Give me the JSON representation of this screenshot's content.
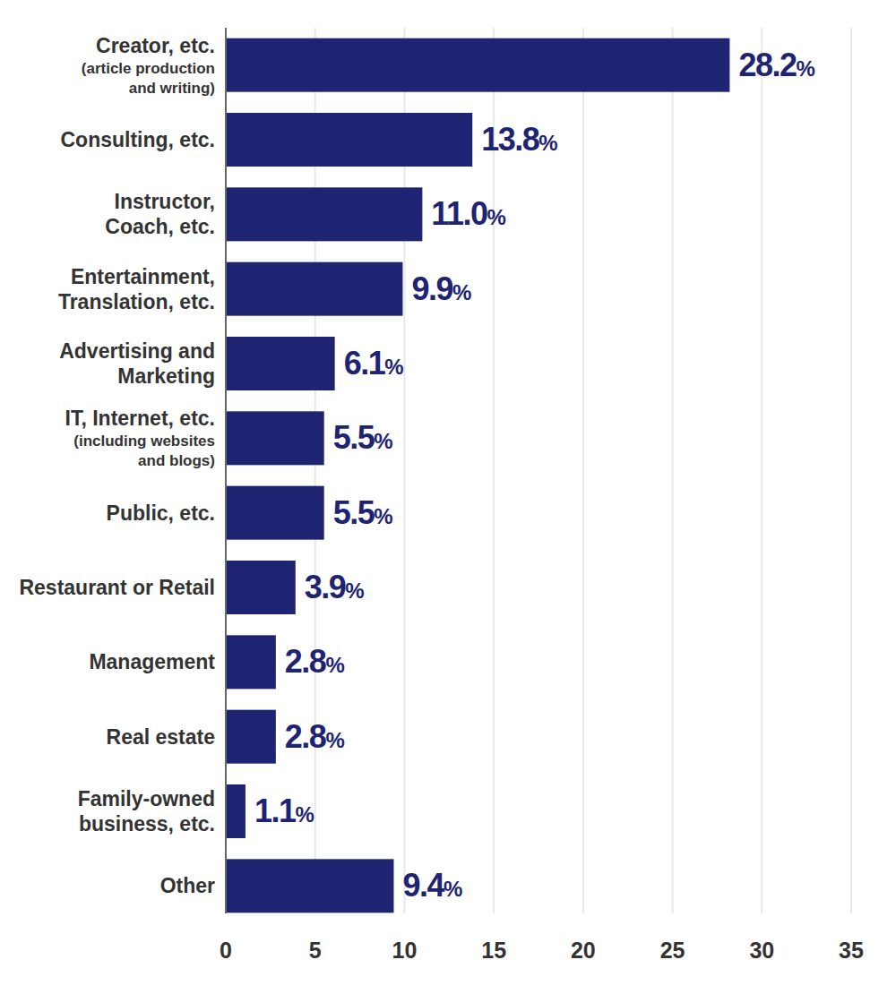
{
  "chart_data": {
    "type": "bar",
    "orientation": "horizontal",
    "categories": [
      "Creator, etc.\n(article production\nand writing)",
      "Consulting, etc.",
      "Instructor,\nCoach, etc.",
      "Entertainment,\nTranslation, etc.",
      "Advertising and\nMarketing",
      "IT, Internet, etc.\n(including websites\nand blogs)",
      "Public, etc.",
      "Restaurant or Retail",
      "Management",
      "Real estate",
      "Family-owned\nbusiness, etc.",
      "Other"
    ],
    "values": [
      28.2,
      13.8,
      11.0,
      9.9,
      6.1,
      5.5,
      5.5,
      3.9,
      2.8,
      2.8,
      1.1,
      9.4
    ],
    "value_labels": [
      "28.2%",
      "13.8%",
      "11.0%",
      "9.9%",
      "6.1%",
      "5.5%",
      "5.5%",
      "3.9%",
      "2.8%",
      "2.8%",
      "1.1%",
      "9.4%"
    ],
    "color": "#1e2471",
    "xlim": [
      0,
      35
    ],
    "xticks": [
      0,
      5,
      10,
      15,
      20,
      25,
      30,
      35
    ],
    "grid": true,
    "data_labels": true
  }
}
